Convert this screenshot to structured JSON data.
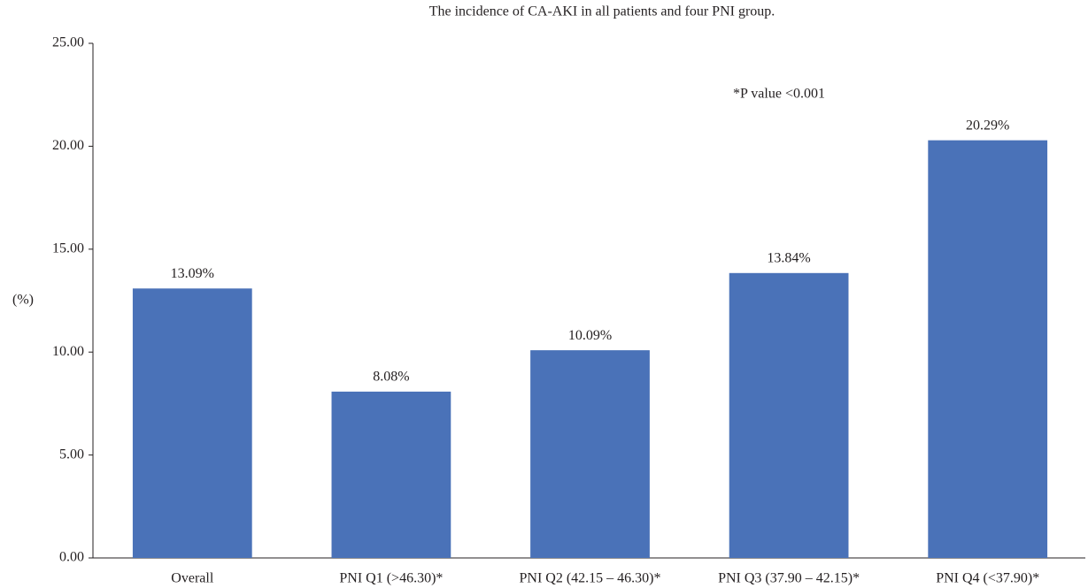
{
  "chart_data": {
    "type": "bar",
    "title": "The incidence of CA-AKI in all patients and four PNI group.",
    "annotation": "*P value <0.001",
    "ylabel": "(%)",
    "categories": [
      "Overall",
      "PNI Q1 (>46.30)*",
      "PNI Q2 (42.15 – 46.30)*",
      "PNI Q3 (37.90 – 42.15)*",
      "PNI Q4 (<37.90)*"
    ],
    "values": [
      13.09,
      8.08,
      10.09,
      13.84,
      20.29
    ],
    "value_labels": [
      "13.09%",
      "8.08%",
      "10.09%",
      "13.84%",
      "20.29%"
    ],
    "color": "#4a72b8",
    "ylim": [
      0,
      25
    ],
    "yticks": [
      {
        "value": 0,
        "label": "0.00"
      },
      {
        "value": 5,
        "label": "5.00"
      },
      {
        "value": 10,
        "label": "10.00"
      },
      {
        "value": 15,
        "label": "15.00"
      },
      {
        "value": 20,
        "label": "20.00"
      },
      {
        "value": 25,
        "label": "25.00"
      }
    ],
    "grid": false
  }
}
